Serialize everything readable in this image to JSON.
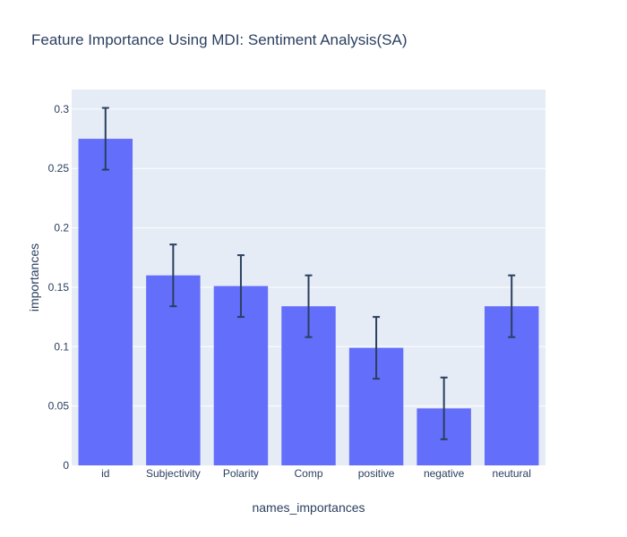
{
  "chart_data": {
    "type": "bar",
    "title": "Feature Importance Using MDI: Sentiment Analysis(SA)",
    "xlabel": "names_importances",
    "ylabel": "importances",
    "categories": [
      "id",
      "Subjectivity",
      "Polarity",
      "Comp",
      "positive",
      "negative",
      "neutural"
    ],
    "values": [
      0.275,
      0.16,
      0.151,
      0.134,
      0.099,
      0.048,
      0.134
    ],
    "error": [
      0.026,
      0.026,
      0.026,
      0.026,
      0.026,
      0.026,
      0.026
    ],
    "ylim": [
      0,
      0.3165
    ],
    "yticks": [
      0,
      0.05,
      0.1,
      0.15,
      0.2,
      0.25,
      0.3
    ],
    "ytick_labels": [
      "0",
      "0.05",
      "0.1",
      "0.15",
      "0.2",
      "0.25",
      "0.3"
    ],
    "grid": true,
    "bar_color": "#636efa",
    "error_color": "#2a3f5f",
    "plot_bg": "#e5ecf6"
  }
}
